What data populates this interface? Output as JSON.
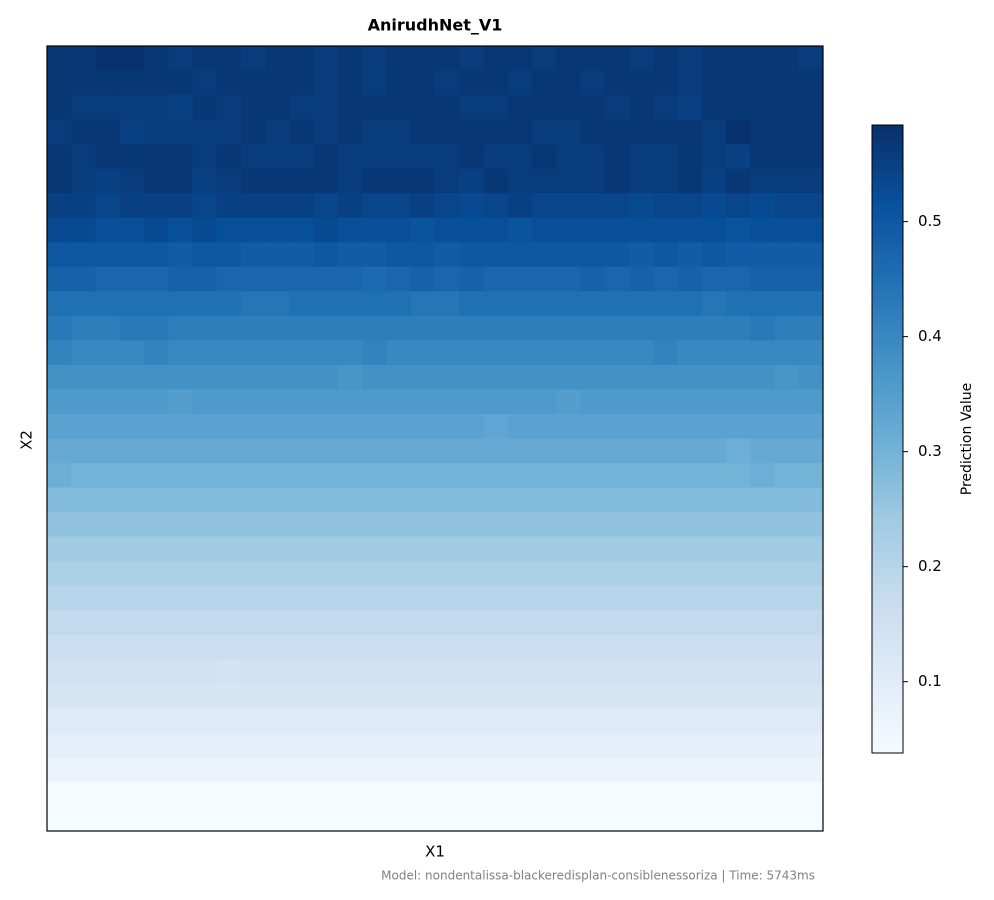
{
  "chart_data": {
    "type": "heatmap",
    "title": "AnirudhNet_V1",
    "x_label": "X1",
    "y_label": "X2",
    "colorbar_label": "Prediction Value",
    "colormap": "Blues",
    "clim": [
      0.038,
      0.584
    ],
    "colorbar_ticks": [
      0.1,
      0.2,
      0.3,
      0.4,
      0.5
    ],
    "note": "Model: nondentalissa-blackeredisplan-consiblenessoriza | Time: 5743ms",
    "z": [
      [
        0.57,
        0.57,
        0.58,
        0.58,
        0.57,
        0.56,
        0.57,
        0.57,
        0.56,
        0.57,
        0.57,
        0.56,
        0.57,
        0.56,
        0.57,
        0.57,
        0.57,
        0.56,
        0.57,
        0.57,
        0.56,
        0.57,
        0.57,
        0.57,
        0.56,
        0.57,
        0.56,
        0.57,
        0.57,
        0.57,
        0.57,
        0.56
      ],
      [
        0.57,
        0.57,
        0.57,
        0.57,
        0.57,
        0.57,
        0.56,
        0.57,
        0.57,
        0.57,
        0.57,
        0.56,
        0.57,
        0.56,
        0.57,
        0.57,
        0.56,
        0.57,
        0.57,
        0.56,
        0.57,
        0.57,
        0.56,
        0.57,
        0.57,
        0.57,
        0.56,
        0.57,
        0.57,
        0.57,
        0.57,
        0.57
      ],
      [
        0.57,
        0.56,
        0.56,
        0.56,
        0.56,
        0.55,
        0.57,
        0.56,
        0.57,
        0.57,
        0.56,
        0.56,
        0.57,
        0.57,
        0.57,
        0.57,
        0.57,
        0.56,
        0.56,
        0.57,
        0.57,
        0.57,
        0.57,
        0.56,
        0.57,
        0.56,
        0.55,
        0.57,
        0.57,
        0.57,
        0.57,
        0.57
      ],
      [
        0.56,
        0.57,
        0.57,
        0.55,
        0.56,
        0.56,
        0.56,
        0.56,
        0.57,
        0.56,
        0.57,
        0.56,
        0.57,
        0.56,
        0.56,
        0.57,
        0.57,
        0.57,
        0.57,
        0.57,
        0.56,
        0.56,
        0.57,
        0.57,
        0.57,
        0.57,
        0.57,
        0.56,
        0.58,
        0.57,
        0.57,
        0.57
      ],
      [
        0.57,
        0.56,
        0.57,
        0.57,
        0.57,
        0.57,
        0.56,
        0.57,
        0.56,
        0.56,
        0.56,
        0.57,
        0.56,
        0.56,
        0.56,
        0.56,
        0.56,
        0.57,
        0.56,
        0.56,
        0.57,
        0.56,
        0.56,
        0.57,
        0.56,
        0.56,
        0.57,
        0.56,
        0.55,
        0.57,
        0.57,
        0.57
      ],
      [
        0.57,
        0.56,
        0.55,
        0.56,
        0.57,
        0.57,
        0.55,
        0.56,
        0.57,
        0.57,
        0.57,
        0.57,
        0.56,
        0.57,
        0.57,
        0.57,
        0.56,
        0.55,
        0.57,
        0.56,
        0.56,
        0.56,
        0.56,
        0.57,
        0.56,
        0.56,
        0.57,
        0.55,
        0.57,
        0.56,
        0.56,
        0.56
      ],
      [
        0.55,
        0.55,
        0.54,
        0.55,
        0.55,
        0.55,
        0.54,
        0.55,
        0.55,
        0.55,
        0.55,
        0.54,
        0.55,
        0.54,
        0.54,
        0.55,
        0.54,
        0.53,
        0.54,
        0.55,
        0.54,
        0.54,
        0.54,
        0.54,
        0.53,
        0.54,
        0.54,
        0.53,
        0.54,
        0.53,
        0.54,
        0.54
      ],
      [
        0.53,
        0.53,
        0.52,
        0.52,
        0.53,
        0.52,
        0.53,
        0.52,
        0.52,
        0.52,
        0.52,
        0.53,
        0.52,
        0.52,
        0.52,
        0.51,
        0.52,
        0.52,
        0.52,
        0.51,
        0.52,
        0.52,
        0.52,
        0.52,
        0.52,
        0.52,
        0.52,
        0.52,
        0.51,
        0.52,
        0.52,
        0.52
      ],
      [
        0.5,
        0.5,
        0.5,
        0.5,
        0.5,
        0.49,
        0.5,
        0.5,
        0.49,
        0.49,
        0.49,
        0.5,
        0.49,
        0.49,
        0.5,
        0.5,
        0.49,
        0.5,
        0.5,
        0.5,
        0.5,
        0.5,
        0.5,
        0.5,
        0.49,
        0.5,
        0.49,
        0.5,
        0.49,
        0.49,
        0.49,
        0.49
      ],
      [
        0.48,
        0.48,
        0.47,
        0.47,
        0.47,
        0.48,
        0.48,
        0.47,
        0.47,
        0.47,
        0.47,
        0.47,
        0.47,
        0.46,
        0.47,
        0.48,
        0.47,
        0.48,
        0.47,
        0.47,
        0.47,
        0.47,
        0.48,
        0.47,
        0.48,
        0.47,
        0.48,
        0.47,
        0.47,
        0.48,
        0.48,
        0.48
      ],
      [
        0.45,
        0.45,
        0.45,
        0.45,
        0.45,
        0.45,
        0.45,
        0.45,
        0.44,
        0.44,
        0.45,
        0.45,
        0.45,
        0.45,
        0.45,
        0.44,
        0.44,
        0.45,
        0.45,
        0.45,
        0.45,
        0.45,
        0.45,
        0.45,
        0.45,
        0.45,
        0.45,
        0.44,
        0.45,
        0.45,
        0.45,
        0.45
      ],
      [
        0.43,
        0.42,
        0.42,
        0.43,
        0.43,
        0.42,
        0.42,
        0.42,
        0.42,
        0.42,
        0.42,
        0.42,
        0.42,
        0.42,
        0.42,
        0.42,
        0.42,
        0.42,
        0.42,
        0.42,
        0.42,
        0.42,
        0.42,
        0.42,
        0.42,
        0.42,
        0.42,
        0.42,
        0.42,
        0.43,
        0.42,
        0.42
      ],
      [
        0.41,
        0.4,
        0.4,
        0.4,
        0.41,
        0.4,
        0.4,
        0.4,
        0.4,
        0.4,
        0.4,
        0.4,
        0.4,
        0.41,
        0.4,
        0.4,
        0.4,
        0.4,
        0.4,
        0.4,
        0.4,
        0.4,
        0.4,
        0.4,
        0.4,
        0.41,
        0.4,
        0.4,
        0.4,
        0.4,
        0.4,
        0.4
      ],
      [
        0.38,
        0.38,
        0.38,
        0.38,
        0.38,
        0.38,
        0.38,
        0.38,
        0.38,
        0.38,
        0.38,
        0.38,
        0.37,
        0.38,
        0.38,
        0.38,
        0.38,
        0.38,
        0.38,
        0.38,
        0.38,
        0.38,
        0.38,
        0.38,
        0.38,
        0.38,
        0.38,
        0.38,
        0.38,
        0.38,
        0.37,
        0.38
      ],
      [
        0.36,
        0.36,
        0.36,
        0.36,
        0.36,
        0.35,
        0.36,
        0.36,
        0.36,
        0.36,
        0.36,
        0.36,
        0.36,
        0.36,
        0.36,
        0.36,
        0.36,
        0.36,
        0.36,
        0.36,
        0.36,
        0.35,
        0.36,
        0.36,
        0.36,
        0.36,
        0.36,
        0.36,
        0.36,
        0.36,
        0.36,
        0.36
      ],
      [
        0.34,
        0.34,
        0.34,
        0.34,
        0.34,
        0.34,
        0.34,
        0.34,
        0.34,
        0.34,
        0.34,
        0.34,
        0.34,
        0.34,
        0.34,
        0.34,
        0.34,
        0.34,
        0.33,
        0.34,
        0.34,
        0.34,
        0.34,
        0.34,
        0.34,
        0.34,
        0.34,
        0.34,
        0.34,
        0.34,
        0.34,
        0.34
      ],
      [
        0.32,
        0.32,
        0.32,
        0.32,
        0.32,
        0.32,
        0.32,
        0.32,
        0.32,
        0.32,
        0.32,
        0.32,
        0.32,
        0.32,
        0.32,
        0.32,
        0.32,
        0.32,
        0.32,
        0.32,
        0.32,
        0.32,
        0.32,
        0.32,
        0.32,
        0.32,
        0.32,
        0.32,
        0.31,
        0.32,
        0.32,
        0.32
      ],
      [
        0.31,
        0.3,
        0.3,
        0.3,
        0.3,
        0.3,
        0.3,
        0.3,
        0.3,
        0.3,
        0.3,
        0.3,
        0.3,
        0.3,
        0.3,
        0.3,
        0.3,
        0.3,
        0.3,
        0.3,
        0.3,
        0.3,
        0.3,
        0.3,
        0.3,
        0.3,
        0.3,
        0.3,
        0.3,
        0.31,
        0.3,
        0.3
      ],
      [
        0.28,
        0.28,
        0.28,
        0.28,
        0.28,
        0.28,
        0.28,
        0.28,
        0.28,
        0.28,
        0.28,
        0.28,
        0.28,
        0.28,
        0.28,
        0.28,
        0.28,
        0.28,
        0.28,
        0.28,
        0.28,
        0.28,
        0.28,
        0.28,
        0.28,
        0.28,
        0.28,
        0.28,
        0.28,
        0.28,
        0.28,
        0.28
      ],
      [
        0.26,
        0.26,
        0.26,
        0.26,
        0.26,
        0.26,
        0.26,
        0.26,
        0.26,
        0.26,
        0.26,
        0.26,
        0.26,
        0.26,
        0.26,
        0.26,
        0.26,
        0.26,
        0.26,
        0.26,
        0.26,
        0.26,
        0.26,
        0.26,
        0.26,
        0.26,
        0.26,
        0.26,
        0.26,
        0.26,
        0.26,
        0.26
      ],
      [
        0.24,
        0.24,
        0.24,
        0.24,
        0.24,
        0.24,
        0.24,
        0.24,
        0.24,
        0.24,
        0.24,
        0.24,
        0.24,
        0.24,
        0.24,
        0.24,
        0.24,
        0.24,
        0.24,
        0.24,
        0.24,
        0.24,
        0.24,
        0.24,
        0.24,
        0.24,
        0.24,
        0.24,
        0.24,
        0.24,
        0.24,
        0.24
      ],
      [
        0.22,
        0.22,
        0.22,
        0.22,
        0.22,
        0.22,
        0.22,
        0.22,
        0.22,
        0.22,
        0.22,
        0.22,
        0.22,
        0.22,
        0.22,
        0.22,
        0.22,
        0.22,
        0.22,
        0.22,
        0.22,
        0.22,
        0.22,
        0.22,
        0.22,
        0.22,
        0.22,
        0.22,
        0.22,
        0.22,
        0.22,
        0.22
      ],
      [
        0.2,
        0.2,
        0.2,
        0.2,
        0.2,
        0.2,
        0.2,
        0.2,
        0.2,
        0.2,
        0.2,
        0.2,
        0.2,
        0.2,
        0.2,
        0.2,
        0.2,
        0.2,
        0.2,
        0.2,
        0.2,
        0.2,
        0.2,
        0.2,
        0.2,
        0.2,
        0.2,
        0.2,
        0.2,
        0.2,
        0.2,
        0.2
      ],
      [
        0.18,
        0.18,
        0.18,
        0.18,
        0.18,
        0.18,
        0.18,
        0.18,
        0.18,
        0.18,
        0.18,
        0.18,
        0.18,
        0.18,
        0.18,
        0.18,
        0.18,
        0.18,
        0.18,
        0.18,
        0.18,
        0.18,
        0.18,
        0.18,
        0.18,
        0.18,
        0.18,
        0.18,
        0.18,
        0.18,
        0.18,
        0.18
      ],
      [
        0.16,
        0.16,
        0.16,
        0.16,
        0.16,
        0.16,
        0.16,
        0.16,
        0.16,
        0.16,
        0.16,
        0.16,
        0.16,
        0.16,
        0.16,
        0.16,
        0.16,
        0.16,
        0.16,
        0.16,
        0.16,
        0.16,
        0.16,
        0.16,
        0.16,
        0.16,
        0.16,
        0.16,
        0.16,
        0.16,
        0.16,
        0.16
      ],
      [
        0.15,
        0.15,
        0.15,
        0.15,
        0.15,
        0.15,
        0.15,
        0.14,
        0.15,
        0.15,
        0.15,
        0.15,
        0.15,
        0.15,
        0.15,
        0.15,
        0.15,
        0.15,
        0.15,
        0.15,
        0.15,
        0.15,
        0.15,
        0.15,
        0.15,
        0.15,
        0.15,
        0.15,
        0.15,
        0.15,
        0.15,
        0.15
      ],
      [
        0.13,
        0.13,
        0.13,
        0.13,
        0.13,
        0.13,
        0.13,
        0.13,
        0.13,
        0.13,
        0.13,
        0.13,
        0.13,
        0.13,
        0.13,
        0.13,
        0.13,
        0.13,
        0.13,
        0.13,
        0.13,
        0.13,
        0.13,
        0.13,
        0.13,
        0.13,
        0.13,
        0.13,
        0.13,
        0.13,
        0.13,
        0.13
      ],
      [
        0.11,
        0.11,
        0.11,
        0.11,
        0.11,
        0.11,
        0.11,
        0.11,
        0.11,
        0.11,
        0.11,
        0.11,
        0.11,
        0.11,
        0.11,
        0.11,
        0.11,
        0.11,
        0.11,
        0.11,
        0.11,
        0.11,
        0.11,
        0.11,
        0.11,
        0.11,
        0.11,
        0.11,
        0.11,
        0.11,
        0.11,
        0.11
      ],
      [
        0.09,
        0.09,
        0.09,
        0.09,
        0.09,
        0.09,
        0.09,
        0.09,
        0.09,
        0.09,
        0.09,
        0.09,
        0.09,
        0.09,
        0.09,
        0.09,
        0.09,
        0.09,
        0.09,
        0.09,
        0.09,
        0.09,
        0.09,
        0.09,
        0.09,
        0.09,
        0.09,
        0.09,
        0.09,
        0.09,
        0.09,
        0.09
      ],
      [
        0.07,
        0.07,
        0.07,
        0.07,
        0.07,
        0.07,
        0.07,
        0.07,
        0.07,
        0.07,
        0.07,
        0.07,
        0.07,
        0.07,
        0.07,
        0.07,
        0.07,
        0.07,
        0.07,
        0.07,
        0.07,
        0.07,
        0.07,
        0.07,
        0.07,
        0.07,
        0.07,
        0.07,
        0.07,
        0.07,
        0.07,
        0.07
      ],
      [
        0.04,
        0.04,
        0.04,
        0.04,
        0.04,
        0.04,
        0.04,
        0.04,
        0.04,
        0.04,
        0.04,
        0.04,
        0.04,
        0.04,
        0.04,
        0.04,
        0.04,
        0.04,
        0.04,
        0.04,
        0.04,
        0.04,
        0.04,
        0.04,
        0.04,
        0.04,
        0.04,
        0.04,
        0.04,
        0.04,
        0.04,
        0.04
      ],
      [
        0.04,
        0.04,
        0.04,
        0.04,
        0.04,
        0.04,
        0.04,
        0.04,
        0.04,
        0.04,
        0.04,
        0.04,
        0.04,
        0.04,
        0.04,
        0.04,
        0.04,
        0.04,
        0.04,
        0.04,
        0.04,
        0.04,
        0.04,
        0.04,
        0.04,
        0.04,
        0.04,
        0.04,
        0.04,
        0.04,
        0.04,
        0.04
      ]
    ]
  }
}
